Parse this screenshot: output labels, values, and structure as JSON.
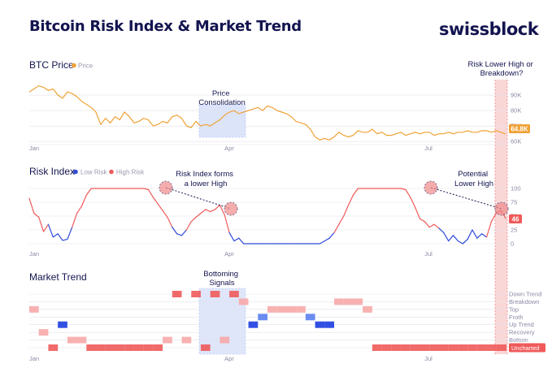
{
  "header": {
    "title": "Bitcoin Risk Index & Market Trend",
    "brand": "swissblock"
  },
  "colors": {
    "price": "#f0a236",
    "low_risk": "#2f4bd8",
    "high_risk": "#f05a5a",
    "trend_dark": "#f05a5a",
    "trend_light": "#f7a9a9",
    "trend_blue": "#5b7ff0",
    "trend_blue_dark": "#1c3ce0",
    "highlight_box": "#c6d3f7",
    "highlight_pink": "#f8c9c9",
    "annotation_circle": "#f08a8a",
    "badge_price": "#f0a236",
    "badge_risk": "#f05a5a",
    "text_dark": "#13144f"
  },
  "chart_data": [
    {
      "type": "line",
      "title": "BTC Price",
      "legend": [
        "Price"
      ],
      "x_ticks": [
        "Jan",
        "Apr",
        "Jul"
      ],
      "y_ticks": [
        60000,
        70000,
        80000,
        90000
      ],
      "y_tick_labels": [
        "60K",
        "70K",
        "80K",
        "90K"
      ],
      "ylim": [
        58000,
        100000
      ],
      "last_value_label": "64.8K",
      "series": [
        {
          "name": "Price",
          "x": [
            0,
            1,
            2,
            3,
            4,
            5,
            6,
            7,
            8,
            9,
            10,
            11,
            12,
            13,
            14,
            15,
            16,
            17,
            18,
            19,
            20,
            21,
            22,
            23,
            24,
            25,
            26,
            27,
            28,
            29,
            30,
            31,
            32,
            33,
            34,
            35,
            36,
            37,
            38,
            39,
            40,
            41,
            42,
            43,
            44,
            45,
            46,
            47,
            48,
            49,
            50,
            51,
            52,
            53,
            54,
            55,
            56,
            57,
            58,
            59,
            60,
            61,
            62,
            63,
            64,
            65,
            66,
            67,
            68,
            69,
            70,
            71,
            72,
            73,
            74,
            75,
            76,
            77,
            78,
            79,
            80,
            81,
            82,
            83,
            84,
            85,
            86,
            87,
            88,
            89,
            90,
            91,
            92,
            93,
            94,
            95,
            96,
            97,
            98,
            99,
            100
          ],
          "values": [
            92000,
            94000,
            96000,
            95000,
            93000,
            94000,
            90000,
            88000,
            92000,
            91000,
            89000,
            86000,
            84000,
            82000,
            79000,
            71000,
            75000,
            72000,
            76000,
            74000,
            79000,
            76000,
            72000,
            73000,
            75000,
            74000,
            70000,
            71000,
            73000,
            72000,
            76000,
            77000,
            75000,
            70000,
            69000,
            73000,
            70000,
            71000,
            70000,
            72000,
            74000,
            77000,
            79000,
            80000,
            78000,
            79000,
            80000,
            81000,
            82000,
            80000,
            83000,
            82000,
            80000,
            79000,
            78000,
            76000,
            73000,
            72000,
            71000,
            68000,
            63000,
            61000,
            62000,
            61000,
            63000,
            66000,
            64000,
            63000,
            64000,
            67000,
            66000,
            66000,
            68000,
            65000,
            66000,
            64000,
            64000,
            65000,
            66000,
            64000,
            65000,
            66000,
            65000,
            66000,
            66000,
            64000,
            65000,
            65000,
            66000,
            65000,
            66000,
            66000,
            67000,
            66000,
            66000,
            67000,
            67000,
            66000,
            67000,
            66000,
            64800
          ]
        }
      ],
      "annotations": [
        "Price Consolidation",
        "Risk Lower High or Breakdown?"
      ]
    },
    {
      "type": "line",
      "title": "Risk Index",
      "legend": [
        "Low Risk",
        "High Risk"
      ],
      "x_ticks": [
        "Jan",
        "Apr",
        "Jul"
      ],
      "y_ticks": [
        0,
        25,
        50,
        75,
        100
      ],
      "ylim": [
        0,
        100
      ],
      "last_value_label": "46",
      "series": [
        {
          "name": "Risk Index",
          "x": [
            0,
            1,
            2,
            3,
            4,
            5,
            6,
            7,
            8,
            9,
            10,
            11,
            12,
            13,
            14,
            15,
            16,
            17,
            18,
            19,
            20,
            21,
            22,
            23,
            24,
            25,
            26,
            27,
            28,
            29,
            30,
            31,
            32,
            33,
            34,
            35,
            36,
            37,
            38,
            39,
            40,
            41,
            42,
            43,
            44,
            45,
            46,
            47,
            48,
            49,
            50,
            51,
            52,
            53,
            54,
            55,
            56,
            57,
            58,
            59,
            60,
            61,
            62,
            63,
            64,
            65,
            66,
            67,
            68,
            69,
            70,
            71,
            72,
            73,
            74,
            75,
            76,
            77,
            78,
            79,
            80,
            81,
            82,
            83,
            84,
            85,
            86,
            87,
            88,
            89,
            90,
            91,
            92,
            93,
            94,
            95,
            96,
            97,
            98,
            99,
            100
          ],
          "values": [
            82,
            55,
            48,
            22,
            35,
            12,
            18,
            6,
            8,
            30,
            55,
            68,
            88,
            100,
            100,
            100,
            100,
            100,
            100,
            100,
            100,
            100,
            100,
            100,
            100,
            98,
            84,
            72,
            60,
            48,
            30,
            18,
            15,
            25,
            40,
            48,
            55,
            62,
            58,
            62,
            70,
            52,
            20,
            5,
            10,
            0,
            0,
            0,
            0,
            0,
            0,
            0,
            0,
            0,
            0,
            0,
            0,
            0,
            0,
            0,
            0,
            0,
            5,
            10,
            20,
            35,
            50,
            70,
            88,
            100,
            100,
            100,
            100,
            100,
            100,
            100,
            100,
            100,
            100,
            98,
            84,
            66,
            45,
            40,
            30,
            35,
            28,
            20,
            5,
            15,
            5,
            0,
            8,
            25,
            10,
            18,
            12,
            40,
            55,
            60,
            46
          ]
        }
      ],
      "annotations": [
        "Risk Index forms a lower High",
        "Potential Lower High"
      ]
    },
    {
      "type": "line",
      "title": "Market Trend",
      "y_levels": [
        "Down Trend",
        "Breakdown",
        "Top",
        "Froth",
        "Up Trend",
        "Recovery",
        "Bottom",
        "Uncharted"
      ],
      "x_ticks": [
        "Jan",
        "Apr",
        "Jul"
      ],
      "series": [
        {
          "name": "Market Trend",
          "x": [
            0,
            2,
            4,
            6,
            8,
            10,
            12,
            14,
            16,
            18,
            20,
            22,
            24,
            26,
            28,
            30,
            32,
            34,
            36,
            38,
            40,
            42,
            44,
            46,
            48,
            50,
            52,
            54,
            56,
            58,
            60,
            62,
            64,
            66,
            68,
            70,
            72,
            74,
            76,
            78,
            80,
            82,
            84,
            86,
            88,
            90,
            92,
            94,
            96,
            98,
            100
          ],
          "values": [
            2,
            5,
            7,
            4,
            6,
            6,
            7,
            7,
            7,
            7,
            7,
            7,
            7,
            7,
            6,
            0,
            6,
            0,
            7,
            0,
            6,
            0,
            1,
            4,
            3,
            2,
            2,
            2,
            2,
            3,
            4,
            4,
            1,
            1,
            1,
            2,
            7,
            7,
            7,
            7,
            7,
            7,
            7,
            7,
            7,
            7,
            7,
            7,
            7,
            7,
            7
          ]
        }
      ],
      "annotations": [
        "Bottoming Signals"
      ]
    }
  ]
}
